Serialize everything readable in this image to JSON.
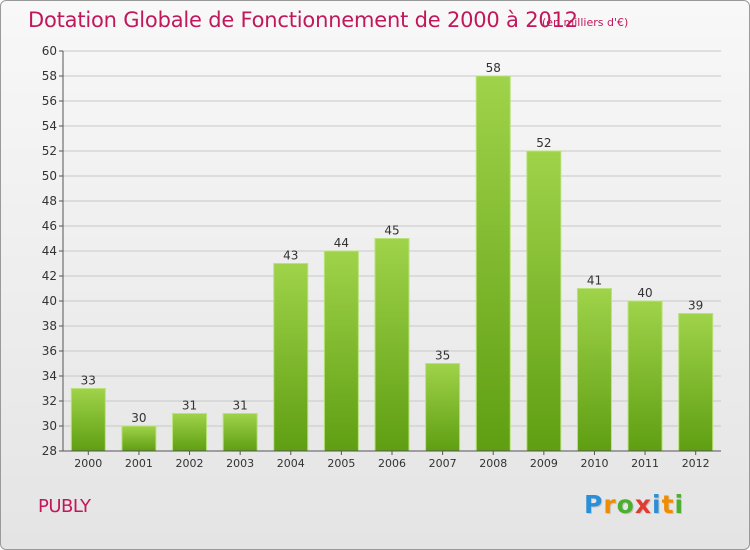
{
  "header": {
    "title": "Dotation Globale de Fonctionnement de 2000 à 2012",
    "subtitle": "(en milliers d'€)"
  },
  "footer": {
    "commune": "PUBLY",
    "logo_letters": [
      "P",
      "r",
      "o",
      "x",
      "i",
      "t",
      "i"
    ],
    "logo_colors": [
      "#2a8fd6",
      "#f08c00",
      "#4caf30",
      "#e03c31",
      "#2a8fd6",
      "#f08c00",
      "#4caf30"
    ]
  },
  "colors": {
    "bar_light": "#9fd34a",
    "bar_dark": "#5f9e12",
    "title": "#c2185b",
    "grid": "#c8c8c8",
    "axis": "#555555"
  },
  "chart_data": {
    "type": "bar",
    "categories": [
      "2000",
      "2001",
      "2002",
      "2003",
      "2004",
      "2005",
      "2006",
      "2007",
      "2008",
      "2009",
      "2010",
      "2011",
      "2012"
    ],
    "values": [
      33,
      30,
      31,
      31,
      43,
      44,
      45,
      35,
      58,
      52,
      41,
      40,
      39
    ],
    "data_labels": [
      "33",
      "30",
      "31",
      "31",
      "43",
      "44",
      "45",
      "35",
      "58",
      "52",
      "41",
      "40",
      "39"
    ],
    "y_ticks": [
      "28",
      "30",
      "32",
      "34",
      "36",
      "38",
      "40",
      "42",
      "44",
      "46",
      "48",
      "50",
      "52",
      "54",
      "56",
      "58",
      "60"
    ],
    "ylim": [
      28,
      60
    ],
    "grid": true,
    "legend": "none"
  }
}
